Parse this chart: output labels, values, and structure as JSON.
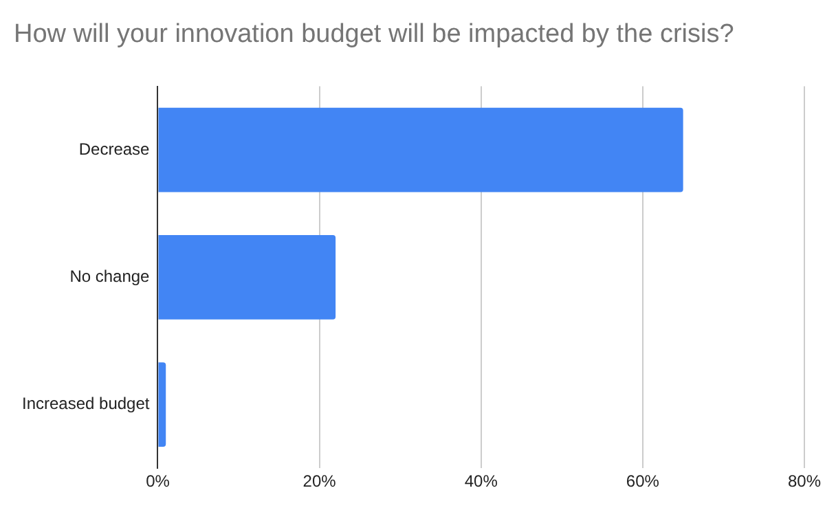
{
  "chart_data": {
    "type": "bar",
    "orientation": "horizontal",
    "title": "How will your innovation budget will be impacted by the crisis?",
    "categories": [
      "Decrease",
      "No change",
      "Increased budget"
    ],
    "values": [
      65,
      22,
      1
    ],
    "color": "#4285f4",
    "xlim": [
      0,
      80
    ],
    "xticks": [
      {
        "value": 0,
        "label": "0%"
      },
      {
        "value": 20,
        "label": "20%"
      },
      {
        "value": 40,
        "label": "40%"
      },
      {
        "value": 60,
        "label": "60%"
      },
      {
        "value": 80,
        "label": "80%"
      }
    ],
    "grid": "x",
    "legend": false
  }
}
